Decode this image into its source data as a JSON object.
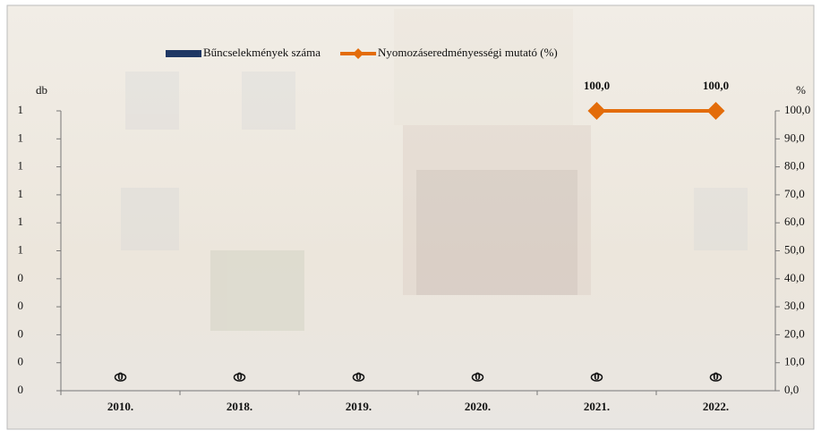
{
  "chart_data": {
    "type": "bar",
    "y_label": "db",
    "y2_label": "%",
    "categories": [
      "2010.",
      "2018.",
      "2019.",
      "2020.",
      "2021.",
      "2022."
    ],
    "series": [
      {
        "name": "Bűncselekmények száma",
        "type": "bar",
        "color": "#1f3864",
        "values": [
          0,
          0,
          0,
          0,
          0,
          0
        ]
      },
      {
        "name": "Nyomozáseredményességi mutató (%)",
        "type": "line",
        "axis": "y2",
        "color": "#e36c0a",
        "values": [
          null,
          null,
          null,
          null,
          100,
          100
        ],
        "value_labels": [
          null,
          null,
          null,
          null,
          "100,0",
          "100,0"
        ]
      }
    ],
    "ylim": [
      0,
      1
    ],
    "yticks": [
      0,
      {
        "value": 0.1,
        "label": "0"
      },
      {
        "value": 0.2,
        "label": "0"
      },
      {
        "value": 0.3,
        "label": "0"
      },
      {
        "value": 0.4,
        "label": "0"
      },
      {
        "value": 0.5,
        "label": "1"
      },
      {
        "value": 0.6,
        "label": "1"
      },
      {
        "value": 0.7,
        "label": "1"
      },
      {
        "value": 0.8,
        "label": "1"
      },
      {
        "value": 0.9,
        "label": "1"
      },
      1
    ],
    "y2lim": [
      0,
      100
    ],
    "y2ticks": [
      {
        "value": 0,
        "label": "0,0"
      },
      {
        "value": 10,
        "label": "10,0"
      },
      {
        "value": 20,
        "label": "20,0"
      },
      {
        "value": 30,
        "label": "30,0"
      },
      {
        "value": 40,
        "label": "40,0"
      },
      {
        "value": 50,
        "label": "50,0"
      },
      {
        "value": 60,
        "label": "60,0"
      },
      {
        "value": 70,
        "label": "70,0"
      },
      {
        "value": 80,
        "label": "80,0"
      },
      {
        "value": 90,
        "label": "90,0"
      },
      {
        "value": 100,
        "label": "100,0"
      }
    ]
  }
}
